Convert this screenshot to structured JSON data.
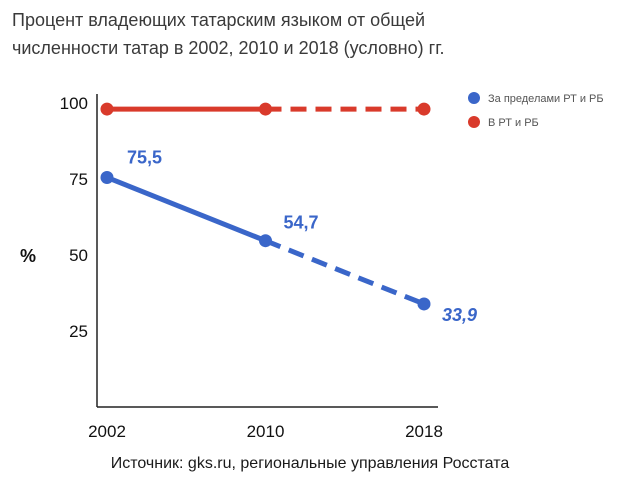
{
  "title_lines": [
    "Процент владеющих татарским языком от общей",
    "численности татар в 2002, 2010 и 2018 (условно) гг."
  ],
  "source": "Источник: gks.ru, региональные управления Росстата",
  "chart_data": {
    "type": "line",
    "x": [
      2002,
      2010,
      2018
    ],
    "xlabel": "",
    "ylabel": "%",
    "yticks": [
      25,
      50,
      75,
      100
    ],
    "ylim": [
      0,
      100
    ],
    "legend_position": "top-right",
    "series": [
      {
        "name": "За пределами РТ и РБ",
        "values": [
          75.5,
          54.7,
          33.9
        ],
        "labels": [
          "75,5",
          "54,7",
          "33,9"
        ],
        "color": "#3a66c9",
        "dashed_from_index": 1
      },
      {
        "name": "В РТ и РБ",
        "values": [
          98,
          98,
          98
        ],
        "color": "#d93a2b",
        "dashed_from_index": 1
      }
    ]
  }
}
